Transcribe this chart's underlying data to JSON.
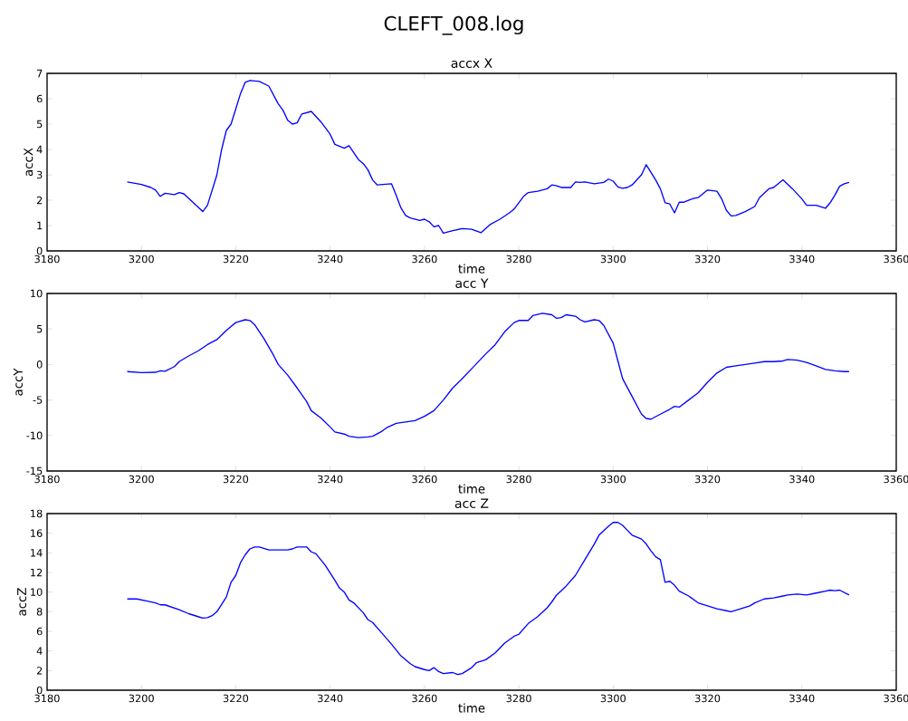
{
  "chart_data": [
    {
      "type": "line",
      "title": "CLEFT_008.log",
      "subtitle": "accx X",
      "xlabel": "time",
      "ylabel": "accX",
      "x": [
        3197,
        3200,
        3202,
        3203,
        3204,
        3205,
        3207,
        3208,
        3209,
        3211,
        3213,
        3214,
        3216,
        3217,
        3218,
        3219,
        3220,
        3221,
        3222,
        3223,
        3225,
        3227,
        3229,
        3230,
        3231,
        3232,
        3233,
        3234,
        3236,
        3238,
        3240,
        3241,
        3243,
        3244,
        3246,
        3247,
        3248,
        3249,
        3250,
        3253,
        3254,
        3255,
        3256,
        3257,
        3259,
        3260,
        3261,
        3262,
        3263,
        3264,
        3266,
        3268,
        3270,
        3272,
        3274,
        3276,
        3278,
        3279,
        3280,
        3281,
        3282,
        3284,
        3286,
        3287,
        3288,
        3289,
        3291,
        3292,
        3293,
        3294,
        3296,
        3298,
        3299,
        3300,
        3301,
        3302,
        3303,
        3304,
        3306,
        3307,
        3308,
        3309,
        3310,
        3311,
        3312,
        3313,
        3314,
        3315,
        3317,
        3318,
        3320,
        3322,
        3323,
        3324,
        3325,
        3326,
        3328,
        3330,
        3331,
        3333,
        3334,
        3336,
        3338,
        3340,
        3341,
        3343,
        3345,
        3346,
        3347,
        3348,
        3349,
        3350
      ],
      "series": [
        {
          "color": "#0000ff",
          "values": [
            2.72,
            2.62,
            2.5,
            2.4,
            2.15,
            2.27,
            2.22,
            2.3,
            2.25,
            1.9,
            1.55,
            1.8,
            3.0,
            4.0,
            4.75,
            5.0,
            5.6,
            6.2,
            6.65,
            6.72,
            6.68,
            6.5,
            5.8,
            5.55,
            5.15,
            5.0,
            5.05,
            5.4,
            5.5,
            5.1,
            4.6,
            4.2,
            4.05,
            4.15,
            3.6,
            3.45,
            3.2,
            2.8,
            2.6,
            2.65,
            2.2,
            1.7,
            1.4,
            1.3,
            1.2,
            1.25,
            1.15,
            0.95,
            1.0,
            0.7,
            0.8,
            0.88,
            0.85,
            0.72,
            1.05,
            1.25,
            1.5,
            1.65,
            1.9,
            2.15,
            2.3,
            2.35,
            2.45,
            2.6,
            2.57,
            2.5,
            2.5,
            2.72,
            2.7,
            2.72,
            2.65,
            2.7,
            2.83,
            2.75,
            2.52,
            2.47,
            2.5,
            2.6,
            3.0,
            3.4,
            3.1,
            2.8,
            2.45,
            1.9,
            1.85,
            1.5,
            1.92,
            1.92,
            2.07,
            2.1,
            2.4,
            2.35,
            2.05,
            1.6,
            1.38,
            1.4,
            1.55,
            1.75,
            2.1,
            2.45,
            2.5,
            2.8,
            2.45,
            2.05,
            1.8,
            1.8,
            1.68,
            1.9,
            2.2,
            2.55,
            2.65,
            2.7
          ]
        }
      ],
      "xlim": [
        3180,
        3360
      ],
      "xticks": [
        3180,
        3200,
        3220,
        3240,
        3260,
        3280,
        3300,
        3320,
        3340,
        3360
      ],
      "ylim": [
        0,
        7
      ],
      "yticks": [
        0,
        1,
        2,
        3,
        4,
        5,
        6,
        7
      ]
    },
    {
      "type": "line",
      "title": "acc Y",
      "xlabel": "time",
      "ylabel": "accY",
      "x": [
        3197,
        3200,
        3203,
        3204,
        3205,
        3207,
        3208,
        3210,
        3212,
        3214,
        3216,
        3218,
        3220,
        3222,
        3223,
        3224,
        3226,
        3228,
        3229,
        3231,
        3233,
        3235,
        3236,
        3238,
        3240,
        3241,
        3243,
        3244,
        3246,
        3248,
        3249,
        3251,
        3252,
        3254,
        3256,
        3258,
        3260,
        3262,
        3264,
        3266,
        3268,
        3270,
        3272,
        3273,
        3275,
        3277,
        3279,
        3280,
        3282,
        3283,
        3285,
        3287,
        3288,
        3289,
        3290,
        3292,
        3293,
        3294,
        3296,
        3297,
        3298,
        3300,
        3301,
        3302,
        3304,
        3306,
        3307,
        3308,
        3310,
        3312,
        3313,
        3314,
        3316,
        3318,
        3320,
        3322,
        3324,
        3326,
        3328,
        3330,
        3332,
        3334,
        3336,
        3337,
        3339,
        3341,
        3343,
        3345,
        3347,
        3349,
        3350
      ],
      "series": [
        {
          "color": "#0000ff",
          "values": [
            -1.0,
            -1.15,
            -1.1,
            -0.9,
            -0.95,
            -0.3,
            0.4,
            1.2,
            1.9,
            2.8,
            3.5,
            4.8,
            5.9,
            6.3,
            6.2,
            5.6,
            3.6,
            1.3,
            0.0,
            -1.5,
            -3.3,
            -5.2,
            -6.5,
            -7.5,
            -8.8,
            -9.5,
            -9.8,
            -10.1,
            -10.3,
            -10.2,
            -10.1,
            -9.4,
            -8.9,
            -8.3,
            -8.1,
            -7.9,
            -7.3,
            -6.5,
            -5.0,
            -3.3,
            -2.0,
            -0.6,
            0.8,
            1.5,
            2.8,
            4.6,
            5.9,
            6.2,
            6.2,
            6.9,
            7.2,
            7.0,
            6.5,
            6.6,
            7.0,
            6.8,
            6.3,
            6.0,
            6.3,
            6.2,
            5.5,
            3.0,
            0.5,
            -2.0,
            -4.5,
            -7.0,
            -7.6,
            -7.7,
            -7.0,
            -6.3,
            -5.9,
            -6.0,
            -5.0,
            -4.0,
            -2.5,
            -1.2,
            -0.4,
            -0.2,
            0.0,
            0.2,
            0.4,
            0.4,
            0.5,
            0.7,
            0.6,
            0.3,
            -0.2,
            -0.7,
            -0.9,
            -1.0,
            -1.0
          ]
        }
      ],
      "xlim": [
        3180,
        3360
      ],
      "xticks": [
        3180,
        3200,
        3220,
        3240,
        3260,
        3280,
        3300,
        3320,
        3340,
        3360
      ],
      "ylim": [
        -15,
        10
      ],
      "yticks": [
        -15,
        -10,
        -5,
        0,
        5,
        10
      ]
    },
    {
      "type": "line",
      "title": "acc Z",
      "xlabel": "time",
      "ylabel": "accZ",
      "x": [
        3197,
        3199,
        3201,
        3203,
        3204,
        3205,
        3208,
        3210,
        3212,
        3213,
        3214,
        3215,
        3216,
        3218,
        3219,
        3220,
        3221,
        3222,
        3223,
        3224,
        3225,
        3227,
        3229,
        3231,
        3232,
        3233,
        3235,
        3236,
        3237,
        3239,
        3241,
        3242,
        3243,
        3244,
        3245,
        3247,
        3248,
        3249,
        3251,
        3253,
        3255,
        3257,
        3258,
        3260,
        3261,
        3262,
        3263,
        3264,
        3266,
        3267,
        3268,
        3270,
        3271,
        3273,
        3275,
        3277,
        3279,
        3280,
        3282,
        3284,
        3286,
        3287,
        3288,
        3290,
        3292,
        3294,
        3296,
        3297,
        3299,
        3300,
        3301,
        3302,
        3303,
        3304,
        3306,
        3307,
        3308,
        3309,
        3310,
        3311,
        3312,
        3313,
        3314,
        3316,
        3318,
        3320,
        3322,
        3324,
        3325,
        3327,
        3329,
        3330,
        3332,
        3334,
        3336,
        3337,
        3339,
        3341,
        3343,
        3345,
        3346,
        3347,
        3348,
        3350
      ],
      "series": [
        {
          "color": "#0000ff",
          "values": [
            9.3,
            9.3,
            9.1,
            8.9,
            8.7,
            8.7,
            8.2,
            7.8,
            7.5,
            7.35,
            7.4,
            7.6,
            8.0,
            9.5,
            11.0,
            11.7,
            13.0,
            13.8,
            14.4,
            14.6,
            14.6,
            14.3,
            14.3,
            14.3,
            14.4,
            14.6,
            14.6,
            14.1,
            13.9,
            12.7,
            11.2,
            10.4,
            10.0,
            9.2,
            8.9,
            7.9,
            7.2,
            6.9,
            5.8,
            4.7,
            3.5,
            2.7,
            2.4,
            2.1,
            2.0,
            2.3,
            1.9,
            1.7,
            1.8,
            1.6,
            1.7,
            2.3,
            2.8,
            3.1,
            3.8,
            4.8,
            5.5,
            5.7,
            6.8,
            7.5,
            8.4,
            9.0,
            9.7,
            10.6,
            11.7,
            13.3,
            14.9,
            15.8,
            16.7,
            17.1,
            17.1,
            16.8,
            16.3,
            15.8,
            15.4,
            14.9,
            14.2,
            13.6,
            13.3,
            11.0,
            11.1,
            10.7,
            10.1,
            9.6,
            8.9,
            8.6,
            8.3,
            8.1,
            8.0,
            8.3,
            8.6,
            8.9,
            9.3,
            9.4,
            9.6,
            9.7,
            9.8,
            9.7,
            9.9,
            10.1,
            10.2,
            10.15,
            10.2,
            9.7
          ]
        }
      ],
      "xlim": [
        3180,
        3360
      ],
      "xticks": [
        3180,
        3200,
        3220,
        3240,
        3260,
        3280,
        3300,
        3320,
        3340,
        3360
      ],
      "ylim": [
        0,
        18
      ],
      "yticks": [
        0,
        2,
        4,
        6,
        8,
        10,
        12,
        14,
        16,
        18
      ]
    }
  ]
}
